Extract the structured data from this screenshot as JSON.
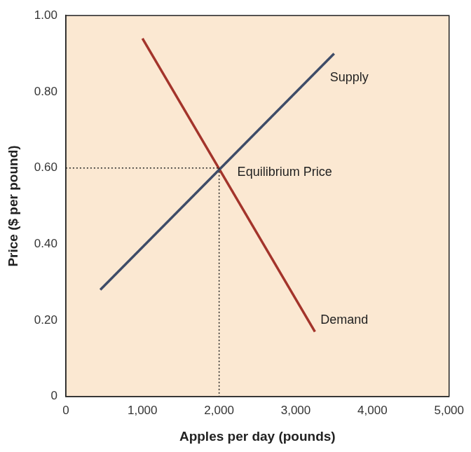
{
  "chart_data": {
    "type": "line",
    "x_label": "Apples per day (pounds)",
    "y_label": "Price ($ per pound)",
    "series": [
      {
        "name": "Supply",
        "color": "#3e4c68",
        "x": [
          450,
          3500
        ],
        "values": [
          0.28,
          0.9
        ]
      },
      {
        "name": "Demand",
        "color": "#a3342b",
        "x": [
          1000,
          3250
        ],
        "values": [
          0.94,
          0.17
        ]
      }
    ],
    "equilibrium": {
      "x": 2000,
      "y": 0.6,
      "label": "Equilibrium Price"
    },
    "xlim": [
      0,
      5000
    ],
    "xticks": [
      0,
      {
        "value": 1000,
        "label": "1,000"
      },
      {
        "value": 2000,
        "label": "2,000"
      },
      {
        "value": 3000,
        "label": "3,000"
      },
      {
        "value": 4000,
        "label": "4,000"
      },
      {
        "value": 5000,
        "label": "5,000"
      }
    ],
    "ylim": [
      0,
      1
    ],
    "yticks": [
      0,
      {
        "value": 0.2,
        "label": "0.20"
      },
      {
        "value": 0.4,
        "label": "0.40"
      },
      {
        "value": 0.6,
        "label": "0.60"
      },
      {
        "value": 0.8,
        "label": "0.80"
      },
      {
        "value": 1,
        "label": "1.00"
      }
    ],
    "grid": false,
    "legend": "none"
  }
}
